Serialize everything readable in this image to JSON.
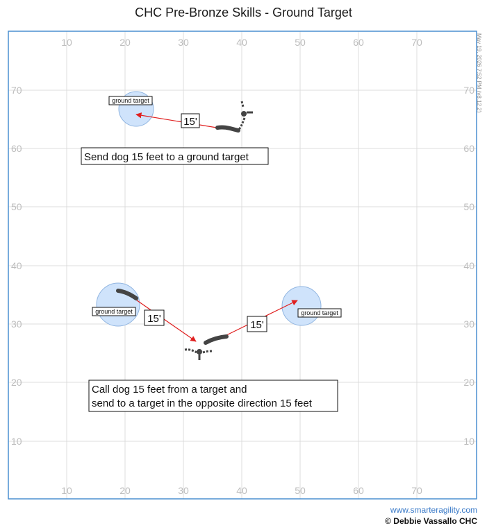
{
  "title": "CHC Pre-Bronze Skills - Ground Target",
  "timestamp": "May 19, 2026 7:52 PM (v8.12.2)",
  "footer": {
    "website": "www.smarteragility.com",
    "copyright": "© Debbie Vassallo CHC"
  },
  "x_ticks": [
    "10",
    "20",
    "30",
    "40",
    "50",
    "60",
    "70"
  ],
  "y_ticks": [
    "70",
    "60",
    "50",
    "40",
    "30",
    "20",
    "10"
  ],
  "targets": [
    {
      "label": "ground target"
    },
    {
      "label": "ground target"
    },
    {
      "label": "ground target"
    }
  ],
  "distances": [
    {
      "label": "15'"
    },
    {
      "label": "15'"
    },
    {
      "label": "15'"
    }
  ],
  "notes": {
    "exercise1": "Send dog 15 feet to a ground target",
    "exercise2_line1": "Call dog 15 feet from a target and",
    "exercise2_line2": "send to a target in the opposite direction 15 feet"
  },
  "colors": {
    "frame": "#4a8fd0",
    "target_fill": "#cfe3fb",
    "target_stroke": "#8fb4e0",
    "arrow": "#e02020",
    "handler": "#444444"
  }
}
